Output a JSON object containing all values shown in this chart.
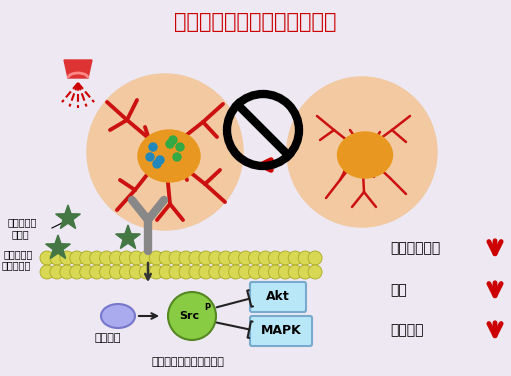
{
  "title": "抗血管新生療法抑制血管增生",
  "title_color": "#cc0000",
  "title_fontsize": 15,
  "bg_color": "#ede8f2",
  "cell_color": "#f2c9a0",
  "inner_blob_color": "#e89820",
  "vessel_color": "#cc1111",
  "src_color": "#88cc44",
  "mem_color": "#d8d855",
  "akt_color": "#b8e8f8",
  "dasatinib_color": "#aaaaee",
  "label_vegf1": "血管內皮生",
  "label_vegf2": "長因子",
  "label_rec1": "血管內皮生",
  "label_rec2": "長因子受體",
  "label_dasatinib": "達沙替尼",
  "label_cell_bottom": "脈絡膜新生血管內皮細胞",
  "label_akt": "Akt",
  "label_mapk": "MAPK",
  "label_src": "Src",
  "right_labels": [
    "內皮細胞存活",
    "遷移",
    "血管新生"
  ],
  "arrow_red_color": "#dd0000",
  "black": "#111111",
  "gray": "#888888",
  "dark_green": "#336633",
  "star_color": "#447744"
}
